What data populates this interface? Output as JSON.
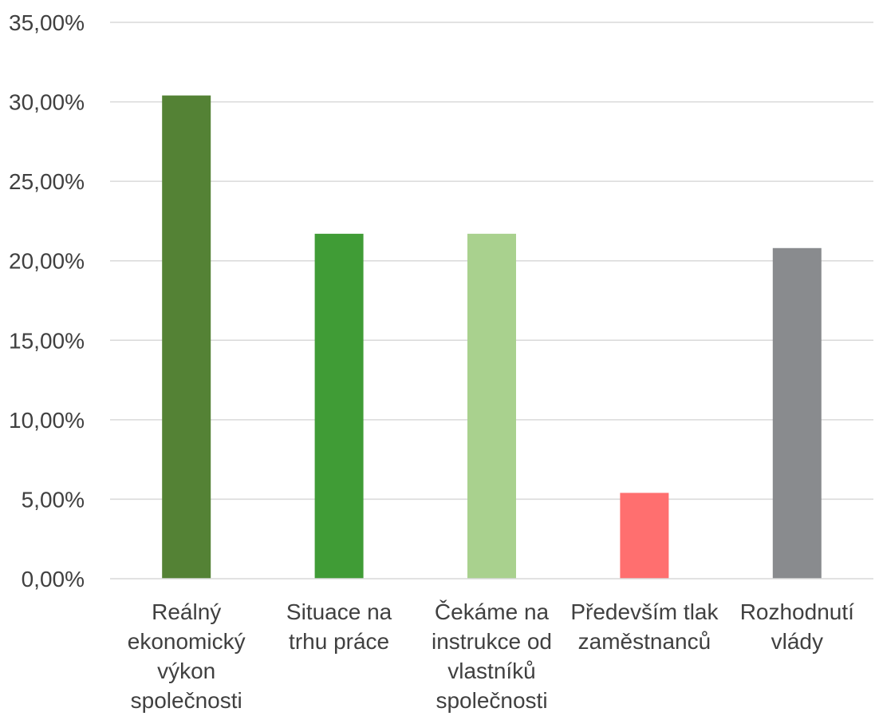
{
  "chart_data": {
    "type": "bar",
    "title": "",
    "xlabel": "",
    "ylabel": "",
    "ylim": [
      0,
      35
    ],
    "yticks": [
      0,
      5,
      10,
      15,
      20,
      25,
      30,
      35
    ],
    "ytick_labels": [
      "0,00%",
      "5,00%",
      "10,00%",
      "15,00%",
      "20,00%",
      "25,00%",
      "30,00%",
      "35,00%"
    ],
    "grid": true,
    "legend": "none",
    "categories": [
      "Reálný ekonomický výkon společnosti",
      "Situace na trhu práce",
      "Čekáme na instrukce od vlastníků společnosti",
      "Především tlak zaměstnanců",
      "Rozhodnutí vlády"
    ],
    "category_lines": [
      [
        "Reálný",
        "ekonomický",
        "výkon",
        "společnosti"
      ],
      [
        "Situace na",
        "trhu práce"
      ],
      [
        "Čekáme na",
        "instrukce od",
        "vlastníků",
        "společnosti"
      ],
      [
        "Především tlak",
        "zaměstnanců"
      ],
      [
        "Rozhodnutí",
        "vlády"
      ]
    ],
    "values": [
      30.4,
      21.7,
      21.7,
      5.4,
      20.8
    ],
    "colors": [
      "#548235",
      "#409C36",
      "#A9D18E",
      "#FF6F6F",
      "#898B8E"
    ]
  }
}
